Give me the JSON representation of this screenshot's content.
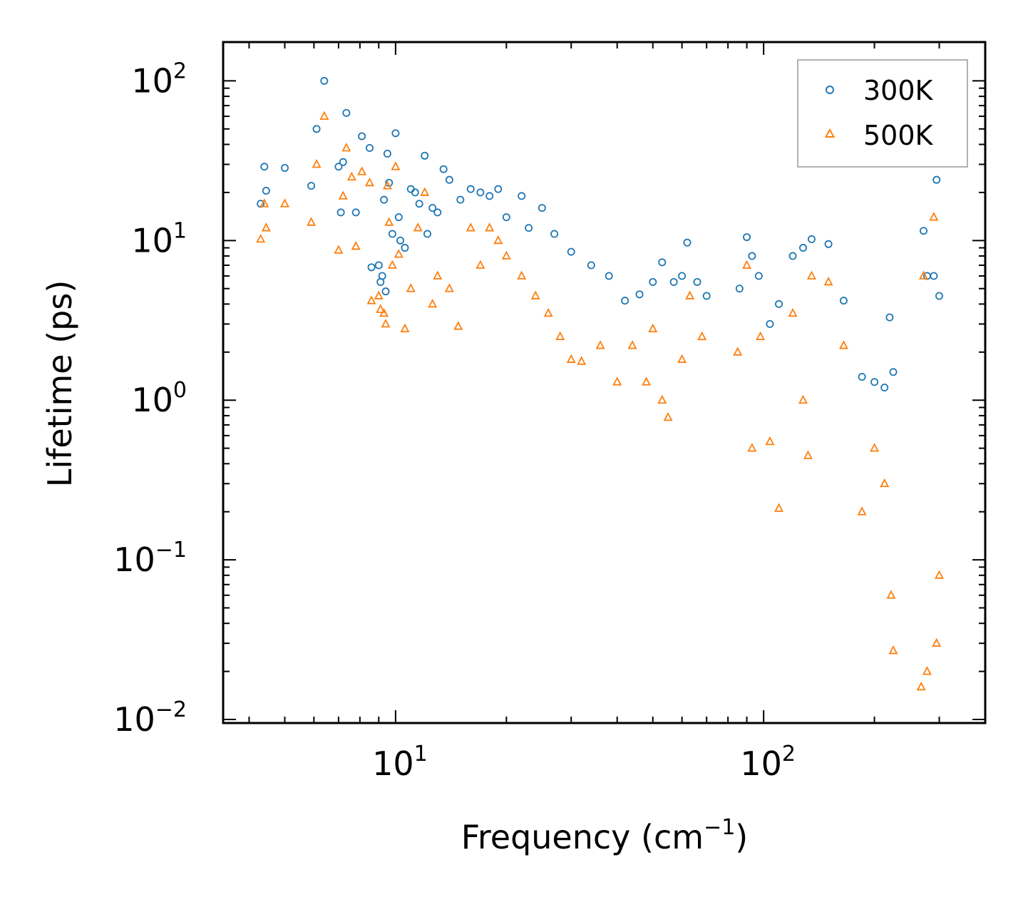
{
  "chart_data": {
    "type": "scatter",
    "title": "",
    "xlabel": {
      "base": "Frequency (cm",
      "sup": "−1",
      "tail": ")"
    },
    "ylabel": "Lifetime (ps)",
    "xscale": "log",
    "yscale": "log",
    "xlim": [
      3.4,
      400
    ],
    "ylim": [
      0.0095,
      175
    ],
    "grid": false,
    "legend_position": "top-right",
    "x_ticks": [
      {
        "value": 10,
        "base": "10",
        "exp": "1"
      },
      {
        "value": 100,
        "base": "10",
        "exp": "2"
      }
    ],
    "y_ticks": [
      {
        "value": 100,
        "base": "10",
        "exp": "2"
      },
      {
        "value": 10,
        "base": "10",
        "exp": "1"
      },
      {
        "value": 1,
        "base": "10",
        "exp": "0"
      },
      {
        "value": 0.1,
        "base": "10",
        "exp": "−1"
      },
      {
        "value": 0.01,
        "base": "10",
        "exp": "−2"
      }
    ],
    "series": [
      {
        "name": "300K",
        "marker": "circle",
        "color": "#1f77b4",
        "points": [
          [
            4.3,
            17
          ],
          [
            4.4,
            29
          ],
          [
            4.45,
            20.5
          ],
          [
            5.0,
            28.5
          ],
          [
            5.9,
            22
          ],
          [
            6.1,
            50
          ],
          [
            6.4,
            100
          ],
          [
            7.0,
            29
          ],
          [
            7.1,
            15
          ],
          [
            7.2,
            31
          ],
          [
            7.35,
            63
          ],
          [
            7.8,
            15
          ],
          [
            8.1,
            45
          ],
          [
            8.5,
            38
          ],
          [
            8.6,
            6.8
          ],
          [
            9.0,
            7
          ],
          [
            9.1,
            5.5
          ],
          [
            9.2,
            6
          ],
          [
            9.3,
            18
          ],
          [
            9.4,
            4.8
          ],
          [
            9.5,
            35
          ],
          [
            9.6,
            23
          ],
          [
            9.8,
            11
          ],
          [
            10.0,
            47
          ],
          [
            10.2,
            14
          ],
          [
            10.3,
            10
          ],
          [
            10.6,
            9
          ],
          [
            11.0,
            21
          ],
          [
            11.3,
            20
          ],
          [
            11.6,
            17
          ],
          [
            12.0,
            34
          ],
          [
            12.2,
            11
          ],
          [
            12.6,
            16
          ],
          [
            13.0,
            15
          ],
          [
            13.5,
            28
          ],
          [
            14.0,
            24
          ],
          [
            15.0,
            18
          ],
          [
            16.0,
            21
          ],
          [
            17.0,
            20
          ],
          [
            18.0,
            19
          ],
          [
            19.0,
            21
          ],
          [
            20.0,
            14
          ],
          [
            22.0,
            19
          ],
          [
            23.0,
            12
          ],
          [
            25.0,
            16
          ],
          [
            27.0,
            11
          ],
          [
            30.0,
            8.5
          ],
          [
            34.0,
            7
          ],
          [
            38.0,
            6
          ],
          [
            42.0,
            4.2
          ],
          [
            46.0,
            4.6
          ],
          [
            50.0,
            5.5
          ],
          [
            53.0,
            7.3
          ],
          [
            57.0,
            5.5
          ],
          [
            60.0,
            6
          ],
          [
            62.0,
            9.7
          ],
          [
            66.0,
            5.5
          ],
          [
            70.0,
            4.5
          ],
          [
            86.0,
            5
          ],
          [
            90.0,
            10.5
          ],
          [
            93.0,
            8
          ],
          [
            97.0,
            6
          ],
          [
            104.0,
            3
          ],
          [
            110.0,
            4
          ],
          [
            120.0,
            8
          ],
          [
            128.0,
            9
          ],
          [
            135.0,
            10.2
          ],
          [
            150.0,
            9.5
          ],
          [
            165.0,
            4.2
          ],
          [
            185.0,
            1.4
          ],
          [
            200.0,
            1.3
          ],
          [
            213.0,
            1.2
          ],
          [
            220.0,
            3.3
          ],
          [
            225.0,
            1.5
          ],
          [
            272.0,
            11.5
          ],
          [
            278.0,
            6
          ],
          [
            290.0,
            6
          ],
          [
            295.0,
            24
          ],
          [
            300.0,
            4.5
          ]
        ]
      },
      {
        "name": "500K",
        "marker": "triangle",
        "color": "#ff7f0e",
        "points": [
          [
            4.3,
            10.2
          ],
          [
            4.4,
            17
          ],
          [
            4.45,
            12
          ],
          [
            5.0,
            17
          ],
          [
            5.9,
            13
          ],
          [
            6.1,
            30
          ],
          [
            6.4,
            60
          ],
          [
            7.0,
            8.7
          ],
          [
            7.2,
            19
          ],
          [
            7.35,
            38
          ],
          [
            7.6,
            25
          ],
          [
            7.8,
            9.2
          ],
          [
            8.1,
            27
          ],
          [
            8.5,
            23
          ],
          [
            8.6,
            4.2
          ],
          [
            9.0,
            4.5
          ],
          [
            9.1,
            3.7
          ],
          [
            9.3,
            3.5
          ],
          [
            9.4,
            3
          ],
          [
            9.5,
            22
          ],
          [
            9.6,
            13
          ],
          [
            9.8,
            7
          ],
          [
            10.0,
            29
          ],
          [
            10.2,
            8.2
          ],
          [
            10.6,
            2.8
          ],
          [
            11.0,
            5
          ],
          [
            11.5,
            12
          ],
          [
            12.0,
            20
          ],
          [
            12.6,
            4
          ],
          [
            13.0,
            6
          ],
          [
            14.0,
            5
          ],
          [
            14.8,
            2.9
          ],
          [
            16.0,
            12
          ],
          [
            17.0,
            7
          ],
          [
            18.0,
            12
          ],
          [
            19.0,
            10
          ],
          [
            20.0,
            8
          ],
          [
            22.0,
            6
          ],
          [
            24.0,
            4.5
          ],
          [
            26.0,
            3.5
          ],
          [
            28.0,
            2.5
          ],
          [
            30.0,
            1.8
          ],
          [
            32.0,
            1.75
          ],
          [
            36.0,
            2.2
          ],
          [
            40.0,
            1.3
          ],
          [
            44.0,
            2.2
          ],
          [
            48.0,
            1.3
          ],
          [
            50.0,
            2.8
          ],
          [
            53.0,
            1.0
          ],
          [
            55.0,
            0.78
          ],
          [
            60.0,
            1.8
          ],
          [
            63.0,
            4.5
          ],
          [
            68.0,
            2.5
          ],
          [
            85.0,
            2
          ],
          [
            90.0,
            7
          ],
          [
            93.0,
            0.5
          ],
          [
            98.0,
            2.5
          ],
          [
            104.0,
            0.55
          ],
          [
            110.0,
            0.21
          ],
          [
            120.0,
            3.5
          ],
          [
            128.0,
            1.0
          ],
          [
            132.0,
            0.45
          ],
          [
            135.0,
            6
          ],
          [
            150.0,
            5.5
          ],
          [
            165.0,
            2.2
          ],
          [
            185.0,
            0.2
          ],
          [
            200.0,
            0.5
          ],
          [
            213.0,
            0.3
          ],
          [
            222.0,
            0.06
          ],
          [
            225.0,
            0.027
          ],
          [
            268.0,
            0.016
          ],
          [
            272.0,
            6
          ],
          [
            278.0,
            0.02
          ],
          [
            290.0,
            14
          ],
          [
            295.0,
            0.03
          ],
          [
            300.0,
            0.08
          ]
        ]
      }
    ],
    "legend": [
      {
        "label": "300K",
        "marker": "circle",
        "color": "#1f77b4"
      },
      {
        "label": "500K",
        "marker": "triangle",
        "color": "#ff7f0e"
      }
    ]
  }
}
